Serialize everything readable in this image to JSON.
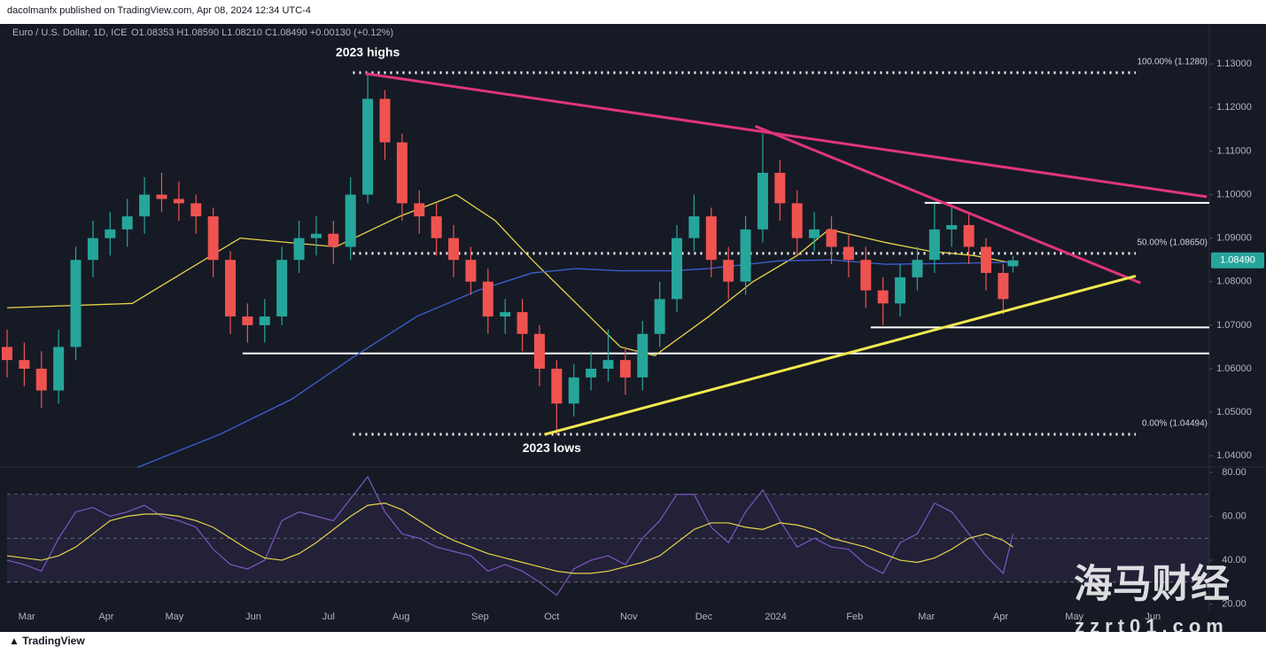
{
  "header": {
    "published": "dacolmanfx published on TradingView.com, Apr 08, 2024 12:34 UTC-4",
    "symbol": "Euro / U.S. Dollar, 1D, ICE",
    "ohlc": "O1.08353 H1.08590 L1.08210 C1.08490 +0.00130 (+0.12%)"
  },
  "footer": {
    "brand": "TradingView"
  },
  "watermark": {
    "title": "海马财经",
    "site": "zzrt01.com"
  },
  "chart_data": [
    {
      "type": "candlestick",
      "up_color": "#26a69a",
      "down_color": "#ef5350",
      "x": [
        0,
        7,
        14,
        21,
        28,
        35,
        42,
        49,
        56,
        63,
        70,
        77,
        84,
        91,
        98,
        105,
        112,
        119,
        126,
        133,
        140,
        147,
        154,
        161,
        168,
        175,
        182,
        189,
        196,
        203,
        210,
        217,
        224,
        231,
        238,
        245,
        252,
        259,
        266,
        273,
        280,
        287,
        294,
        301,
        308,
        315,
        322,
        329,
        336,
        343,
        350,
        357,
        364,
        371,
        378,
        385,
        392,
        399,
        406,
        410
      ],
      "open": [
        1.065,
        1.062,
        1.06,
        1.055,
        1.065,
        1.085,
        1.09,
        1.092,
        1.095,
        1.1,
        1.099,
        1.098,
        1.095,
        1.085,
        1.072,
        1.07,
        1.072,
        1.085,
        1.09,
        1.091,
        1.088,
        1.1,
        1.122,
        1.112,
        1.098,
        1.095,
        1.09,
        1.085,
        1.08,
        1.072,
        1.073,
        1.068,
        1.06,
        1.052,
        1.058,
        1.06,
        1.062,
        1.058,
        1.068,
        1.076,
        1.09,
        1.095,
        1.085,
        1.08,
        1.092,
        1.105,
        1.098,
        1.09,
        1.092,
        1.088,
        1.085,
        1.078,
        1.075,
        1.081,
        1.085,
        1.092,
        1.093,
        1.088,
        1.082,
        1.08353
      ],
      "high": [
        1.069,
        1.066,
        1.064,
        1.069,
        1.088,
        1.094,
        1.096,
        1.099,
        1.104,
        1.105,
        1.103,
        1.1,
        1.097,
        1.087,
        1.075,
        1.076,
        1.088,
        1.094,
        1.095,
        1.094,
        1.104,
        1.1276,
        1.124,
        1.114,
        1.101,
        1.098,
        1.093,
        1.088,
        1.083,
        1.076,
        1.076,
        1.07,
        1.062,
        1.061,
        1.064,
        1.069,
        1.065,
        1.071,
        1.08,
        1.093,
        1.1,
        1.097,
        1.088,
        1.095,
        1.114,
        1.108,
        1.101,
        1.096,
        1.095,
        1.091,
        1.088,
        1.081,
        1.084,
        1.088,
        1.098,
        1.097,
        1.096,
        1.09,
        1.084,
        1.0859
      ],
      "low": [
        1.058,
        1.056,
        1.051,
        1.052,
        1.062,
        1.081,
        1.086,
        1.088,
        1.091,
        1.096,
        1.094,
        1.091,
        1.081,
        1.068,
        1.066,
        1.066,
        1.07,
        1.082,
        1.086,
        1.084,
        1.085,
        1.098,
        1.108,
        1.094,
        1.091,
        1.086,
        1.081,
        1.077,
        1.068,
        1.068,
        1.064,
        1.056,
        1.0448,
        1.049,
        1.055,
        1.057,
        1.054,
        1.055,
        1.065,
        1.073,
        1.087,
        1.081,
        1.076,
        1.077,
        1.089,
        1.094,
        1.086,
        1.087,
        1.084,
        1.081,
        1.074,
        1.07,
        1.072,
        1.078,
        1.082,
        1.088,
        1.084,
        1.078,
        1.0725,
        1.0821
      ],
      "close": [
        1.062,
        1.06,
        1.055,
        1.065,
        1.085,
        1.09,
        1.092,
        1.095,
        1.1,
        1.099,
        1.098,
        1.095,
        1.085,
        1.072,
        1.07,
        1.072,
        1.085,
        1.09,
        1.091,
        1.088,
        1.1,
        1.122,
        1.112,
        1.098,
        1.095,
        1.09,
        1.085,
        1.08,
        1.072,
        1.073,
        1.068,
        1.06,
        1.052,
        1.058,
        1.06,
        1.062,
        1.058,
        1.068,
        1.076,
        1.09,
        1.095,
        1.085,
        1.08,
        1.092,
        1.105,
        1.098,
        1.09,
        1.092,
        1.088,
        1.085,
        1.078,
        1.075,
        1.081,
        1.085,
        1.092,
        1.093,
        1.088,
        1.082,
        1.076,
        1.0849
      ],
      "xlim": [
        0,
        490
      ],
      "xticks": [
        {
          "value": 8,
          "label": "Mar"
        },
        {
          "value": 40.4,
          "label": "Apr"
        },
        {
          "value": 68.2,
          "label": "May"
        },
        {
          "value": 100.4,
          "label": "Jun"
        },
        {
          "value": 131,
          "label": "Jul"
        },
        {
          "value": 160.6,
          "label": "Aug"
        },
        {
          "value": 192.8,
          "label": "Sep"
        },
        {
          "value": 222,
          "label": "Oct"
        },
        {
          "value": 253.4,
          "label": "Nov"
        },
        {
          "value": 284,
          "label": "Dec"
        },
        {
          "value": 313.3,
          "label": "2024"
        },
        {
          "value": 345.5,
          "label": "Feb"
        },
        {
          "value": 374.7,
          "label": "Mar"
        },
        {
          "value": 405,
          "label": "Apr"
        },
        {
          "value": 435,
          "label": "May"
        },
        {
          "value": 467,
          "label": "Jun"
        }
      ],
      "ylim": [
        1.0374,
        1.139
      ],
      "yticks": [
        {
          "value": 1.04,
          "label": "1.04000"
        },
        {
          "value": 1.05,
          "label": "1.05000"
        },
        {
          "value": 1.06,
          "label": "1.06000"
        },
        {
          "value": 1.07,
          "label": "1.07000"
        },
        {
          "value": 1.08,
          "label": "1.08000"
        },
        {
          "value": 1.09,
          "label": "1.09000"
        },
        {
          "value": 1.1,
          "label": "1.10000"
        },
        {
          "value": 1.11,
          "label": "1.11000"
        },
        {
          "value": 1.12,
          "label": "1.12000"
        },
        {
          "value": 1.13,
          "label": "1.13000"
        }
      ],
      "last_price": {
        "value": 1.0849,
        "label": "1.08490"
      },
      "overlays": [
        {
          "color": "#e6d44a",
          "x": [
            0,
            51,
            95,
            134,
            160,
            183,
            199,
            214,
            232,
            250,
            264,
            286,
            304,
            322,
            335,
            358,
            376,
            394,
            412
          ],
          "values": [
            1.074,
            1.075,
            1.09,
            1.088,
            1.095,
            1.1,
            1.094,
            1.085,
            1.075,
            1.065,
            1.063,
            1.072,
            1.08,
            1.086,
            1.092,
            1.089,
            1.087,
            1.086,
            1.084
          ]
        },
        {
          "color": "#3f5fd6",
          "x": [
            53,
            87,
            116,
            142,
            167,
            192,
            214,
            232,
            250,
            271,
            286,
            315,
            336,
            358,
            387,
            412
          ],
          "values": [
            1.0373,
            1.045,
            1.053,
            1.063,
            1.072,
            1.078,
            1.082,
            1.083,
            1.0825,
            1.0825,
            1.083,
            1.0848,
            1.085,
            1.084,
            1.0842,
            1.0845
          ]
        }
      ],
      "levels": [
        {
          "value": 1.128,
          "x": [
            141,
            460
          ],
          "style": "dotted",
          "label": "100.00% (1.1280)"
        },
        {
          "value": 1.0865,
          "x": [
            141,
            460
          ],
          "style": "dotted",
          "label": "50.00% (1.08650)"
        },
        {
          "value": 1.04494,
          "x": [
            141,
            460
          ],
          "style": "dotted",
          "label": "0.00% (1.04494)"
        },
        {
          "value": 1.0635,
          "x": [
            96,
            490
          ],
          "style": "solid"
        },
        {
          "value": 1.0695,
          "x": [
            352,
            490
          ],
          "style": "solid"
        },
        {
          "value": 1.0981,
          "x": [
            374,
            490
          ],
          "style": "solid"
        }
      ],
      "trendlines": [
        {
          "color": "#e0357a",
          "x": [
            146,
            489
          ],
          "values": [
            1.1278,
            1.0995
          ]
        },
        {
          "color": "#e0357a",
          "x": [
            305,
            462
          ],
          "values": [
            1.1157,
            1.0797
          ]
        },
        {
          "color": "#f2e94e",
          "x": [
            219,
            460
          ],
          "values": [
            1.0449,
            1.0813
          ]
        }
      ],
      "annotations": [
        {
          "text": "2023 highs",
          "x": 147,
          "value": 1.1325
        },
        {
          "text": "2023 lows",
          "x": 222,
          "value": 1.0416
        }
      ]
    },
    {
      "type": "line",
      "x": [
        0,
        7,
        14,
        21,
        28,
        35,
        42,
        49,
        56,
        63,
        70,
        77,
        84,
        91,
        98,
        105,
        112,
        119,
        126,
        133,
        140,
        147,
        154,
        161,
        168,
        175,
        182,
        189,
        196,
        203,
        210,
        217,
        224,
        231,
        238,
        245,
        252,
        259,
        266,
        273,
        280,
        287,
        294,
        301,
        308,
        315,
        322,
        329,
        336,
        343,
        350,
        357,
        364,
        371,
        378,
        385,
        392,
        399,
        406,
        410
      ],
      "series": [
        {
          "color": "#7e57c2",
          "values": [
            40,
            38,
            35,
            50,
            62,
            64,
            60,
            62,
            65,
            60,
            58,
            55,
            45,
            38,
            36,
            40,
            58,
            62,
            60,
            58,
            68,
            78,
            62,
            52,
            50,
            46,
            44,
            42,
            35,
            38,
            35,
            30,
            24,
            36,
            40,
            42,
            38,
            50,
            58,
            70,
            70,
            55,
            48,
            62,
            72,
            58,
            46,
            50,
            46,
            45,
            38,
            34,
            48,
            52,
            66,
            62,
            52,
            42,
            34,
            52
          ]
        },
        {
          "color": "#e6d44a",
          "values": [
            42,
            41,
            40,
            42,
            46,
            52,
            58,
            60,
            61,
            61,
            60,
            58,
            55,
            50,
            45,
            41,
            40,
            43,
            48,
            54,
            60,
            65,
            66,
            63,
            58,
            53,
            49,
            46,
            43,
            41,
            39,
            37,
            35,
            34,
            34,
            35,
            37,
            39,
            42,
            48,
            54,
            57,
            57,
            55,
            54,
            57,
            56,
            54,
            50,
            48,
            46,
            43,
            40,
            39,
            41,
            45,
            50,
            52,
            49,
            46
          ]
        }
      ],
      "xlim": [
        0,
        490
      ],
      "ylim": [
        16.6,
        82.4
      ],
      "yticks": [
        {
          "value": 20,
          "label": "20.00"
        },
        {
          "value": 40,
          "label": "40.00"
        },
        {
          "value": 60,
          "label": "60.00"
        },
        {
          "value": 80,
          "label": "80.00"
        }
      ],
      "band": [
        30,
        70
      ],
      "dashed_levels": [
        30,
        50,
        70
      ]
    }
  ]
}
